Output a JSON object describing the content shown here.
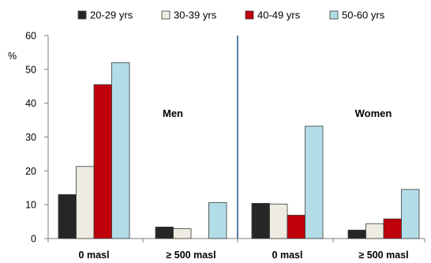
{
  "chart_data": {
    "type": "bar",
    "ylabel": "%",
    "ylim": [
      0,
      60
    ],
    "yticks": [
      0,
      10,
      20,
      30,
      40,
      50,
      60
    ],
    "grid": false,
    "legend_position": "top",
    "panels": [
      {
        "label": "Men",
        "categories": [
          "0 masl",
          "≥ 500 masl"
        ],
        "series": [
          {
            "name": "20-29 yrs",
            "color": "#262626",
            "values": [
              13.0,
              3.4
            ]
          },
          {
            "name": "30-39 yrs",
            "color": "#eeebe2",
            "values": [
              21.3,
              2.9
            ]
          },
          {
            "name": "40-49 yrs",
            "color": "#c0000b",
            "values": [
              45.5,
              0
            ]
          },
          {
            "name": "50-60 yrs",
            "color": "#b3dde6",
            "values": [
              52.0,
              10.6
            ]
          }
        ]
      },
      {
        "label": "Women",
        "categories": [
          "0 masl",
          "≥ 500 masl"
        ],
        "series": [
          {
            "name": "20-29 yrs",
            "color": "#262626",
            "values": [
              10.4,
              2.5
            ]
          },
          {
            "name": "30-39 yrs",
            "color": "#eeebe2",
            "values": [
              10.2,
              4.4
            ]
          },
          {
            "name": "40-49 yrs",
            "color": "#c0000b",
            "values": [
              6.9,
              5.8
            ]
          },
          {
            "name": "50-60 yrs",
            "color": "#b3dde6",
            "values": [
              33.2,
              14.5
            ]
          }
        ]
      }
    ],
    "colors": {
      "divider": "#2f5f8f",
      "axis": "#7f7f7f",
      "bar_outline": "#3a3a3a"
    }
  }
}
